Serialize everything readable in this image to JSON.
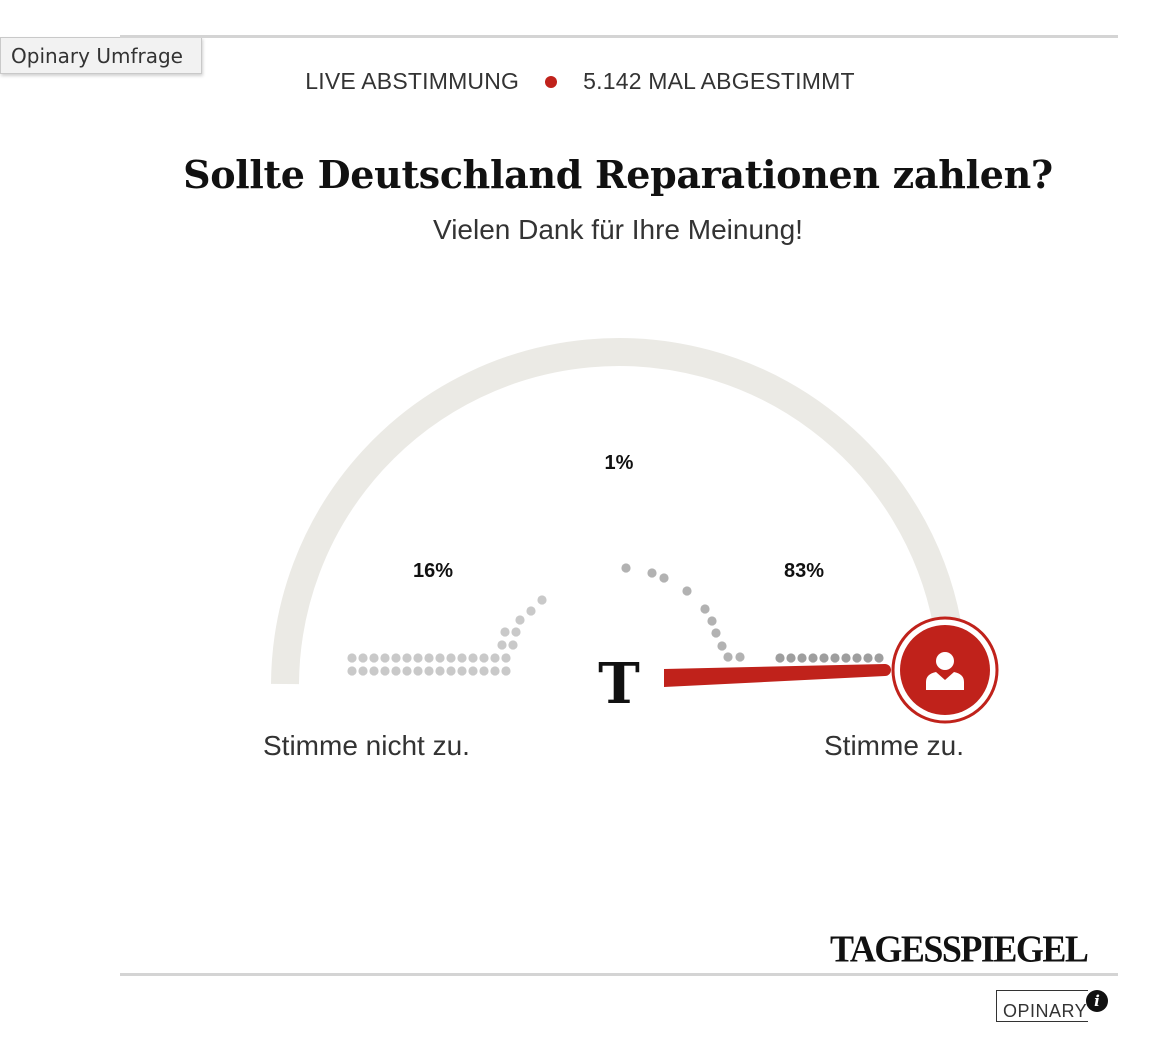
{
  "tooltip": "Opinary Umfrage",
  "status": {
    "live": "LIVE ABSTIMMUNG",
    "votes": "5.142 MAL ABGESTIMMT",
    "dot_color": "#c0221b"
  },
  "poll": {
    "question": "Sollte Deutschland Reparationen zahlen?",
    "thanks": "Vielen Dank für Ihre Meinung!",
    "left_label": "Stimme nicht zu.",
    "right_label": "Stimme zu.",
    "results": {
      "disagree": "16%",
      "neutral": "1%",
      "agree": "83%"
    },
    "needle_value": 0.97,
    "accent_color": "#c0221b",
    "center_logo": "T",
    "user_icon": "user-icon"
  },
  "footer": {
    "publisher": "TAGESSPIEGEL",
    "provider": "OPINARY",
    "info": "i"
  }
}
